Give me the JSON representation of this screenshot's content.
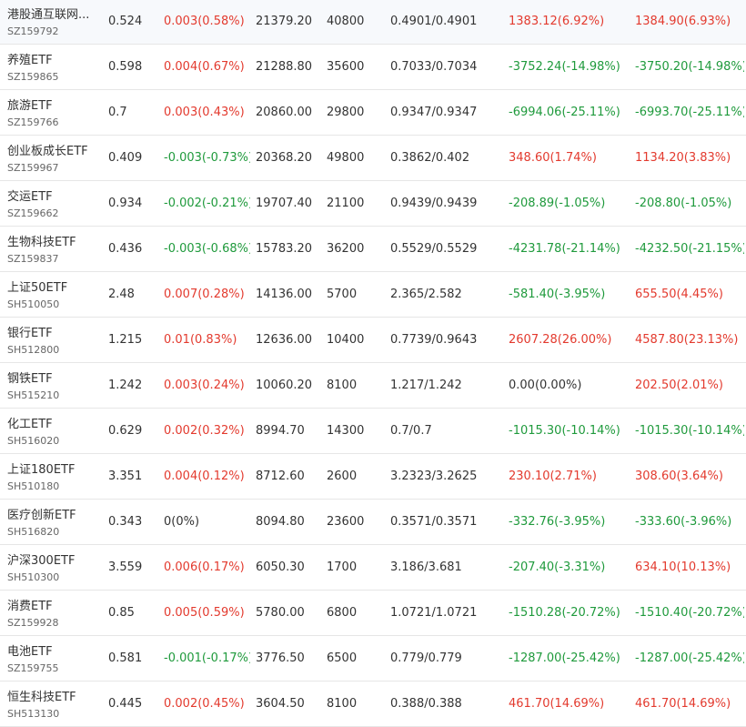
{
  "colors": {
    "up": "#e33a2e",
    "down": "#1f9a3c",
    "flat": "#333333"
  },
  "rows": [
    {
      "name": "港股通互联网...",
      "code": "SZ159792",
      "price": "0.524",
      "change": "0.003(0.58%)",
      "change_dir": "up",
      "volume": "21379.20",
      "shares": "40800",
      "nav": "0.4901/0.4901",
      "pl1": "1383.12(6.92%)",
      "pl1_dir": "up",
      "pl2": "1384.90(6.93%)",
      "pl2_dir": "up"
    },
    {
      "name": "养殖ETF",
      "code": "SZ159865",
      "price": "0.598",
      "change": "0.004(0.67%)",
      "change_dir": "up",
      "volume": "21288.80",
      "shares": "35600",
      "nav": "0.7033/0.7034",
      "pl1": "-3752.24(-14.98%)",
      "pl1_dir": "down",
      "pl2": "-3750.20(-14.98%)",
      "pl2_dir": "down"
    },
    {
      "name": "旅游ETF",
      "code": "SZ159766",
      "price": "0.7",
      "change": "0.003(0.43%)",
      "change_dir": "up",
      "volume": "20860.00",
      "shares": "29800",
      "nav": "0.9347/0.9347",
      "pl1": "-6994.06(-25.11%)",
      "pl1_dir": "down",
      "pl2": "-6993.70(-25.11%)",
      "pl2_dir": "down"
    },
    {
      "name": "创业板成长ETF",
      "code": "SZ159967",
      "price": "0.409",
      "change": "-0.003(-0.73%)",
      "change_dir": "down",
      "volume": "20368.20",
      "shares": "49800",
      "nav": "0.3862/0.402",
      "pl1": "348.60(1.74%)",
      "pl1_dir": "up",
      "pl2": "1134.20(3.83%)",
      "pl2_dir": "up"
    },
    {
      "name": "交运ETF",
      "code": "SZ159662",
      "price": "0.934",
      "change": "-0.002(-0.21%)",
      "change_dir": "down",
      "volume": "19707.40",
      "shares": "21100",
      "nav": "0.9439/0.9439",
      "pl1": "-208.89(-1.05%)",
      "pl1_dir": "down",
      "pl2": "-208.80(-1.05%)",
      "pl2_dir": "down"
    },
    {
      "name": "生物科技ETF",
      "code": "SZ159837",
      "price": "0.436",
      "change": "-0.003(-0.68%)",
      "change_dir": "down",
      "volume": "15783.20",
      "shares": "36200",
      "nav": "0.5529/0.5529",
      "pl1": "-4231.78(-21.14%)",
      "pl1_dir": "down",
      "pl2": "-4232.50(-21.15%)",
      "pl2_dir": "down"
    },
    {
      "name": "上证50ETF",
      "code": "SH510050",
      "price": "2.48",
      "change": "0.007(0.28%)",
      "change_dir": "up",
      "volume": "14136.00",
      "shares": "5700",
      "nav": "2.365/2.582",
      "pl1": "-581.40(-3.95%)",
      "pl1_dir": "down",
      "pl2": "655.50(4.45%)",
      "pl2_dir": "up"
    },
    {
      "name": "银行ETF",
      "code": "SH512800",
      "price": "1.215",
      "change": "0.01(0.83%)",
      "change_dir": "up",
      "volume": "12636.00",
      "shares": "10400",
      "nav": "0.7739/0.9643",
      "pl1": "2607.28(26.00%)",
      "pl1_dir": "up",
      "pl2": "4587.80(23.13%)",
      "pl2_dir": "up"
    },
    {
      "name": "钢铁ETF",
      "code": "SH515210",
      "price": "1.242",
      "change": "0.003(0.24%)",
      "change_dir": "up",
      "volume": "10060.20",
      "shares": "8100",
      "nav": "1.217/1.242",
      "pl1": "0.00(0.00%)",
      "pl1_dir": "flat",
      "pl2": "202.50(2.01%)",
      "pl2_dir": "up"
    },
    {
      "name": "化工ETF",
      "code": "SH516020",
      "price": "0.629",
      "change": "0.002(0.32%)",
      "change_dir": "up",
      "volume": "8994.70",
      "shares": "14300",
      "nav": "0.7/0.7",
      "pl1": "-1015.30(-10.14%)",
      "pl1_dir": "down",
      "pl2": "-1015.30(-10.14%)",
      "pl2_dir": "down"
    },
    {
      "name": "上证180ETF",
      "code": "SH510180",
      "price": "3.351",
      "change": "0.004(0.12%)",
      "change_dir": "up",
      "volume": "8712.60",
      "shares": "2600",
      "nav": "3.2323/3.2625",
      "pl1": "230.10(2.71%)",
      "pl1_dir": "up",
      "pl2": "308.60(3.64%)",
      "pl2_dir": "up"
    },
    {
      "name": "医疗创新ETF",
      "code": "SH516820",
      "price": "0.343",
      "change": "0(0%)",
      "change_dir": "flat",
      "volume": "8094.80",
      "shares": "23600",
      "nav": "0.3571/0.3571",
      "pl1": "-332.76(-3.95%)",
      "pl1_dir": "down",
      "pl2": "-333.60(-3.96%)",
      "pl2_dir": "down"
    },
    {
      "name": "沪深300ETF",
      "code": "SH510300",
      "price": "3.559",
      "change": "0.006(0.17%)",
      "change_dir": "up",
      "volume": "6050.30",
      "shares": "1700",
      "nav": "3.186/3.681",
      "pl1": "-207.40(-3.31%)",
      "pl1_dir": "down",
      "pl2": "634.10(10.13%)",
      "pl2_dir": "up"
    },
    {
      "name": "消费ETF",
      "code": "SZ159928",
      "price": "0.85",
      "change": "0.005(0.59%)",
      "change_dir": "up",
      "volume": "5780.00",
      "shares": "6800",
      "nav": "1.0721/1.0721",
      "pl1": "-1510.28(-20.72%)",
      "pl1_dir": "down",
      "pl2": "-1510.40(-20.72%)",
      "pl2_dir": "down"
    },
    {
      "name": "电池ETF",
      "code": "SZ159755",
      "price": "0.581",
      "change": "-0.001(-0.17%)",
      "change_dir": "down",
      "volume": "3776.50",
      "shares": "6500",
      "nav": "0.779/0.779",
      "pl1": "-1287.00(-25.42%)",
      "pl1_dir": "down",
      "pl2": "-1287.00(-25.42%)",
      "pl2_dir": "down"
    },
    {
      "name": "恒生科技ETF",
      "code": "SH513130",
      "price": "0.445",
      "change": "0.002(0.45%)",
      "change_dir": "up",
      "volume": "3604.50",
      "shares": "8100",
      "nav": "0.388/0.388",
      "pl1": "461.70(14.69%)",
      "pl1_dir": "up",
      "pl2": "461.70(14.69%)",
      "pl2_dir": "up"
    }
  ]
}
